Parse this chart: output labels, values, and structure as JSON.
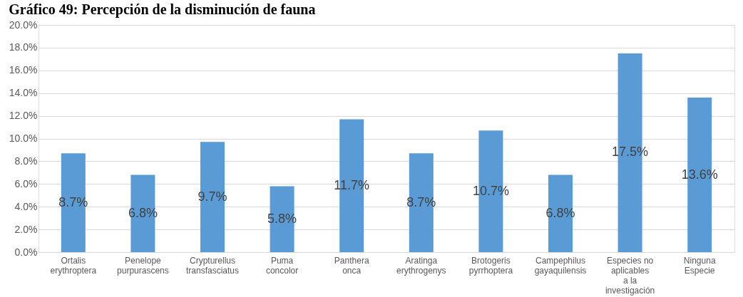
{
  "chart_data": {
    "type": "bar",
    "title": "Gráfico 49: Percepción de la disminución de fauna",
    "categories": [
      "Ortalis erythroptera",
      "Penelope purpurascens",
      "Crypturellus transfasciatus",
      "Puma concolor",
      "Panthera onca",
      "Aratinga erythrogenys",
      "Brotogeris pyrrhoptera",
      "Campephilus gayaquilensis",
      "Especies no aplicables a la investigación",
      "Ninguna Especie"
    ],
    "values": [
      8.7,
      6.8,
      9.7,
      5.8,
      11.7,
      8.7,
      10.7,
      6.8,
      17.5,
      13.6
    ],
    "value_labels": [
      "8.7%",
      "6.8%",
      "9.7%",
      "5.8%",
      "11.7%",
      "8.7%",
      "10.7%",
      "6.8%",
      "17.5%",
      "13.6%"
    ],
    "color": "#5b9bd5",
    "ylim": [
      0,
      20
    ],
    "yticks": [
      {
        "value": 0,
        "label": "0.0%"
      },
      {
        "value": 2,
        "label": "2.0%"
      },
      {
        "value": 4,
        "label": "4.0%"
      },
      {
        "value": 6,
        "label": "6.0%"
      },
      {
        "value": 8,
        "label": "8.0%"
      },
      {
        "value": 10,
        "label": "10.0%"
      },
      {
        "value": 12,
        "label": "12.0%"
      },
      {
        "value": 14,
        "label": "14.0%"
      },
      {
        "value": 16,
        "label": "16.0%"
      },
      {
        "value": 18,
        "label": "18.0%"
      },
      {
        "value": 20,
        "label": "20.0%"
      }
    ],
    "grid": "y"
  }
}
